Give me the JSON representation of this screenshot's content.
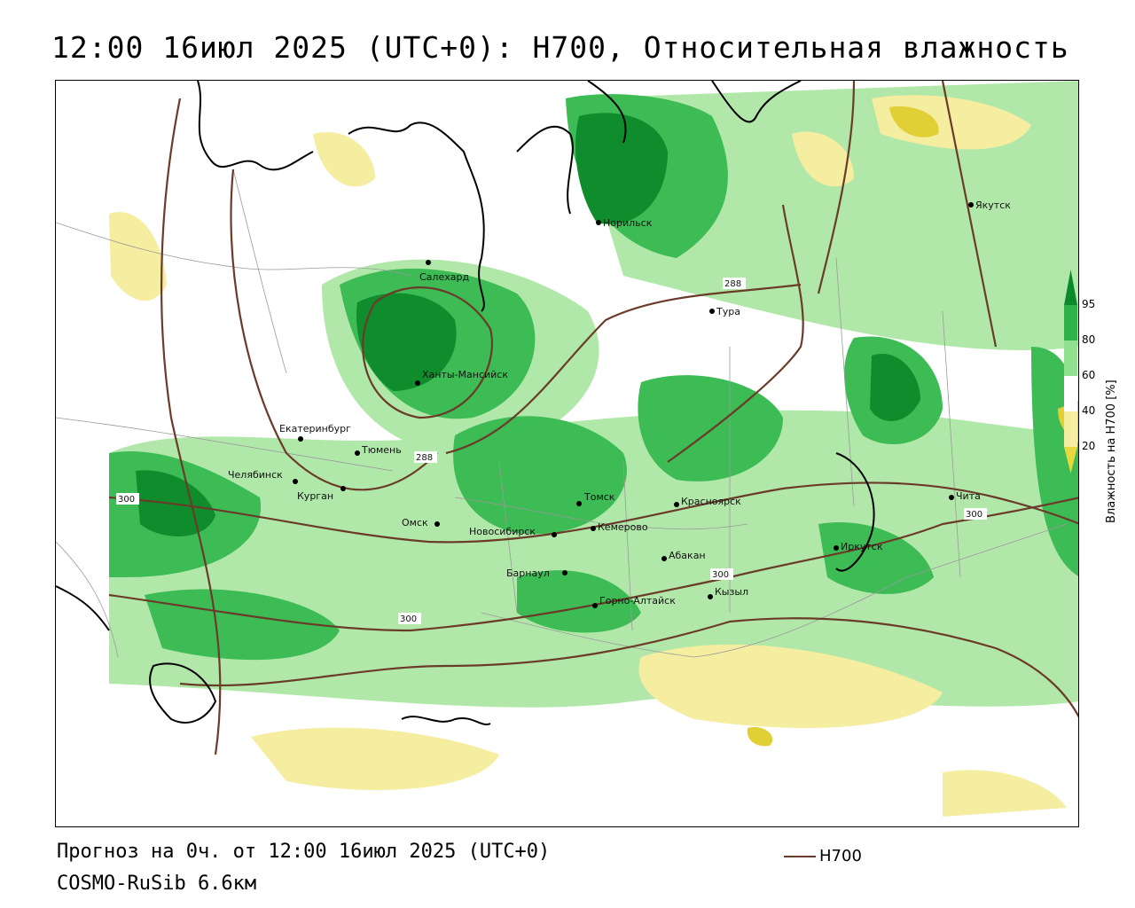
{
  "title": "12:00 16июл 2025 (UTC+0): H700, Относительная влажность",
  "footer": {
    "forecast": "Прогноз на 0ч. от 12:00 16июл 2025 (UTC+0)",
    "model": "COSMO-RuSib 6.6км",
    "line_legend": "H700"
  },
  "legend": {
    "title": "Влажность на H700 [%]",
    "ticks": [
      "95",
      "80",
      "60",
      "40",
      "20"
    ],
    "colors": {
      "95": "#0a8a2a",
      "80": "#2fb24a",
      "60": "#8fe08f",
      "40": "#ffffff",
      "20": "#f5eda0",
      "low": "#e8d840"
    }
  },
  "colors": {
    "contour": "#6b3b2a",
    "coast": "#000000",
    "border": "#999999"
  },
  "cities": [
    {
      "name": "Норильск"
    },
    {
      "name": "Якутск"
    },
    {
      "name": "Салехард"
    },
    {
      "name": "Тура"
    },
    {
      "name": "Ханты-Мансийск"
    },
    {
      "name": "Екатеринбург"
    },
    {
      "name": "Тюмень"
    },
    {
      "name": "Челябинск"
    },
    {
      "name": "Курган"
    },
    {
      "name": "Омск"
    },
    {
      "name": "Новосибирск"
    },
    {
      "name": "Томск"
    },
    {
      "name": "Кемерово"
    },
    {
      "name": "Красноярск"
    },
    {
      "name": "Абакан"
    },
    {
      "name": "Барнаул"
    },
    {
      "name": "Горно-Алтайск"
    },
    {
      "name": "Кызыл"
    },
    {
      "name": "Иркутск"
    },
    {
      "name": "Чита"
    }
  ],
  "isolines": [
    {
      "label": "288"
    },
    {
      "label": "288"
    },
    {
      "label": "300"
    },
    {
      "label": "300"
    },
    {
      "label": "300"
    },
    {
      "label": "300"
    }
  ]
}
